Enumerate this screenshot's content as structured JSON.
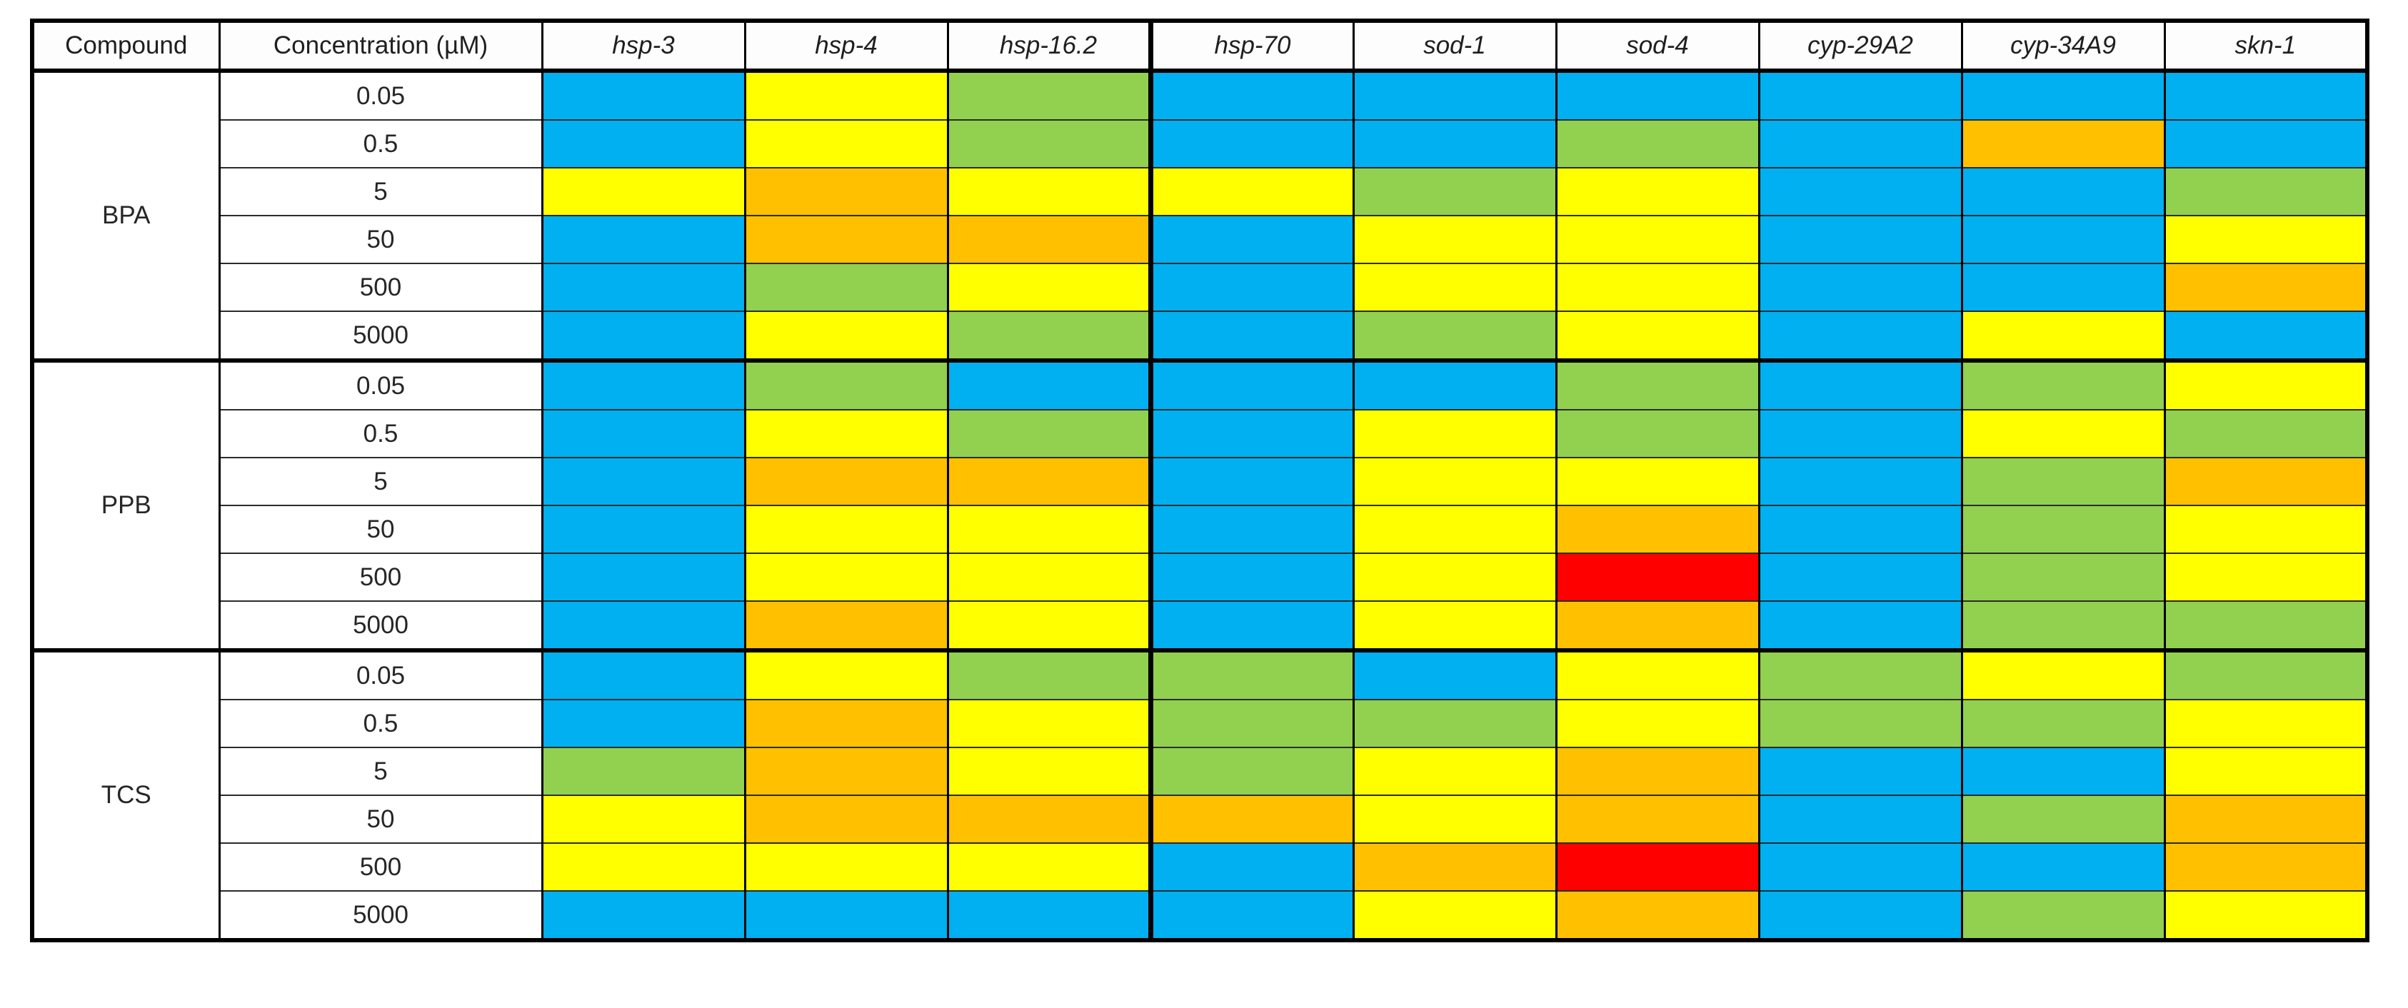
{
  "table": {
    "header": {
      "compound": "Compound",
      "concentration": "Concentration (µM)"
    }
  },
  "chart_data": {
    "type": "heatmap",
    "columns": [
      "hsp-3",
      "hsp-4",
      "hsp-16.2",
      "hsp-70",
      "sod-1",
      "sod-4",
      "cyp-29A2",
      "cyp-34A9",
      "skn-1"
    ],
    "row_label_columns": [
      "Compound",
      "Concentration (µM)"
    ],
    "color_scale": {
      "blue": "#00B0F0",
      "green": "#92D050",
      "yellow": "#FFFF00",
      "orange": "#FFC000",
      "red": "#FF0000"
    },
    "rows": [
      {
        "compound": "BPA",
        "concentration": "0.05",
        "values": [
          "blue",
          "yellow",
          "green",
          "blue",
          "blue",
          "blue",
          "blue",
          "blue",
          "blue"
        ]
      },
      {
        "compound": "BPA",
        "concentration": "0.5",
        "values": [
          "blue",
          "yellow",
          "green",
          "blue",
          "blue",
          "green",
          "blue",
          "orange",
          "blue"
        ]
      },
      {
        "compound": "BPA",
        "concentration": "5",
        "values": [
          "yellow",
          "orange",
          "yellow",
          "yellow",
          "green",
          "yellow",
          "blue",
          "blue",
          "green"
        ]
      },
      {
        "compound": "BPA",
        "concentration": "50",
        "values": [
          "blue",
          "orange",
          "orange",
          "blue",
          "yellow",
          "yellow",
          "blue",
          "blue",
          "yellow"
        ]
      },
      {
        "compound": "BPA",
        "concentration": "500",
        "values": [
          "blue",
          "green",
          "yellow",
          "blue",
          "yellow",
          "yellow",
          "blue",
          "blue",
          "orange"
        ]
      },
      {
        "compound": "BPA",
        "concentration": "5000",
        "values": [
          "blue",
          "yellow",
          "green",
          "blue",
          "green",
          "yellow",
          "blue",
          "yellow",
          "blue"
        ]
      },
      {
        "compound": "PPB",
        "concentration": "0.05",
        "values": [
          "blue",
          "green",
          "blue",
          "blue",
          "blue",
          "green",
          "blue",
          "green",
          "yellow"
        ]
      },
      {
        "compound": "PPB",
        "concentration": "0.5",
        "values": [
          "blue",
          "yellow",
          "green",
          "blue",
          "yellow",
          "green",
          "blue",
          "yellow",
          "green"
        ]
      },
      {
        "compound": "PPB",
        "concentration": "5",
        "values": [
          "blue",
          "orange",
          "orange",
          "blue",
          "yellow",
          "yellow",
          "blue",
          "green",
          "orange"
        ]
      },
      {
        "compound": "PPB",
        "concentration": "50",
        "values": [
          "blue",
          "yellow",
          "yellow",
          "blue",
          "yellow",
          "orange",
          "blue",
          "green",
          "yellow"
        ]
      },
      {
        "compound": "PPB",
        "concentration": "500",
        "values": [
          "blue",
          "yellow",
          "yellow",
          "blue",
          "yellow",
          "red",
          "blue",
          "green",
          "yellow"
        ]
      },
      {
        "compound": "PPB",
        "concentration": "5000",
        "values": [
          "blue",
          "orange",
          "yellow",
          "blue",
          "yellow",
          "orange",
          "blue",
          "green",
          "green"
        ]
      },
      {
        "compound": "TCS",
        "concentration": "0.05",
        "values": [
          "blue",
          "yellow",
          "green",
          "green",
          "blue",
          "yellow",
          "green",
          "yellow",
          "green"
        ]
      },
      {
        "compound": "TCS",
        "concentration": "0.5",
        "values": [
          "blue",
          "orange",
          "yellow",
          "green",
          "green",
          "yellow",
          "green",
          "green",
          "yellow"
        ]
      },
      {
        "compound": "TCS",
        "concentration": "5",
        "values": [
          "green",
          "orange",
          "yellow",
          "green",
          "yellow",
          "orange",
          "blue",
          "blue",
          "yellow"
        ]
      },
      {
        "compound": "TCS",
        "concentration": "50",
        "values": [
          "yellow",
          "orange",
          "orange",
          "orange",
          "yellow",
          "orange",
          "blue",
          "green",
          "orange"
        ]
      },
      {
        "compound": "TCS",
        "concentration": "500",
        "values": [
          "yellow",
          "yellow",
          "yellow",
          "blue",
          "orange",
          "red",
          "blue",
          "blue",
          "orange"
        ]
      },
      {
        "compound": "TCS",
        "concentration": "5000",
        "values": [
          "blue",
          "blue",
          "blue",
          "blue",
          "yellow",
          "orange",
          "blue",
          "green",
          "yellow"
        ]
      }
    ]
  }
}
